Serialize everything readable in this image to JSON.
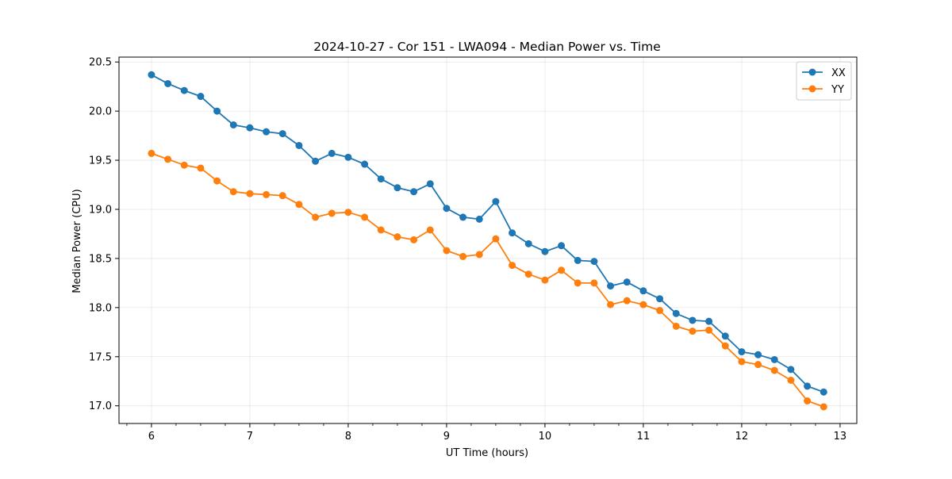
{
  "chart_data": {
    "type": "line",
    "title": "2024-10-27 - Cor 151 - LWA094 - Median Power vs. Time",
    "xlabel": "UT Time (hours)",
    "ylabel": "Median Power (CPU)",
    "xlim": [
      5.67,
      13.17
    ],
    "ylim": [
      16.82,
      20.55
    ],
    "xticks": [
      6,
      7,
      8,
      9,
      10,
      11,
      12,
      13
    ],
    "yticks": [
      17.0,
      17.5,
      18.0,
      18.5,
      19.0,
      19.5,
      20.0,
      20.5
    ],
    "yticklabels": [
      "17.0",
      "17.5",
      "18.0",
      "18.5",
      "19.0",
      "19.5",
      "20.0",
      "20.5"
    ],
    "minor_xtick_step": 0.25,
    "grid": true,
    "legend_position": "top-right",
    "x": [
      6.0,
      6.1667,
      6.3333,
      6.5,
      6.6667,
      6.8333,
      7.0,
      7.1667,
      7.3333,
      7.5,
      7.6667,
      7.8333,
      8.0,
      8.1667,
      8.3333,
      8.5,
      8.6667,
      8.8333,
      9.0,
      9.1667,
      9.3333,
      9.5,
      9.6667,
      9.8333,
      10.0,
      10.1667,
      10.3333,
      10.5,
      10.6667,
      10.8333,
      11.0,
      11.1667,
      11.3333,
      11.5,
      11.6667,
      11.8333,
      12.0,
      12.1667,
      12.3333,
      12.5,
      12.6667,
      12.8333
    ],
    "series": [
      {
        "name": "XX",
        "color": "#1f77b4",
        "values": [
          20.37,
          20.28,
          20.21,
          20.15,
          20.0,
          19.86,
          19.83,
          19.79,
          19.77,
          19.65,
          19.49,
          19.57,
          19.53,
          19.46,
          19.31,
          19.22,
          19.18,
          19.26,
          19.01,
          18.92,
          18.9,
          19.08,
          18.76,
          18.65,
          18.57,
          18.63,
          18.48,
          18.47,
          18.22,
          18.26,
          18.17,
          18.09,
          17.94,
          17.87,
          17.86,
          17.71,
          17.55,
          17.52,
          17.47,
          17.37,
          17.2,
          17.14
        ]
      },
      {
        "name": "YY",
        "color": "#ff7f0e",
        "values": [
          19.57,
          19.51,
          19.45,
          19.42,
          19.29,
          19.18,
          19.16,
          19.15,
          19.14,
          19.05,
          18.92,
          18.96,
          18.97,
          18.92,
          18.79,
          18.72,
          18.69,
          18.79,
          18.58,
          18.52,
          18.54,
          18.7,
          18.43,
          18.34,
          18.28,
          18.38,
          18.25,
          18.25,
          18.03,
          18.07,
          18.03,
          17.97,
          17.81,
          17.76,
          17.77,
          17.61,
          17.45,
          17.42,
          17.36,
          17.26,
          17.05,
          16.99
        ]
      }
    ]
  }
}
